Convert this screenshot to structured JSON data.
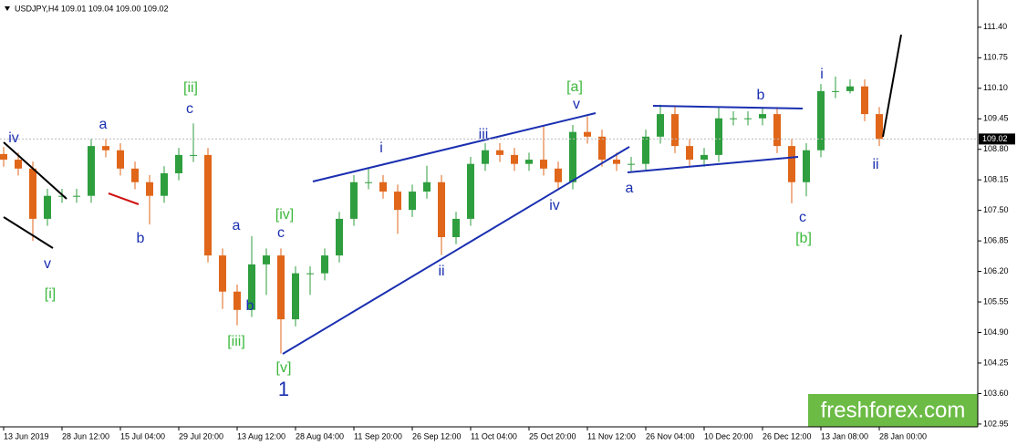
{
  "chart_data": {
    "type": "candlestick",
    "title": "USDJPY,H4  109.01 109.04 109.00 109.02",
    "up_color": "#2e9e3e",
    "down_color": "#e0661a",
    "open": [
      108.7,
      108.58,
      108.39,
      107.32,
      107.81,
      107.81,
      107.81,
      108.87,
      108.78,
      108.39,
      108.1,
      107.81,
      108.29,
      108.68,
      108.68,
      106.54,
      105.77,
      105.38,
      106.35,
      106.54,
      105.18,
      106.16,
      106.16,
      106.54,
      107.32,
      108.1,
      108.1,
      107.9,
      107.51,
      107.9,
      108.1,
      106.93,
      107.32,
      108.49,
      108.78,
      108.68,
      108.49,
      108.58,
      108.39,
      108.1,
      109.17,
      109.07,
      108.58,
      108.49,
      108.49,
      109.07,
      109.55,
      108.87,
      108.58,
      108.68,
      109.46,
      109.46,
      109.46,
      109.55,
      108.87,
      108.1,
      108.78,
      110.04,
      110.04,
      110.14,
      109.55
    ],
    "high": [
      108.85,
      108.73,
      108.54,
      107.96,
      107.96,
      107.96,
      109.02,
      109.02,
      108.93,
      108.54,
      108.25,
      108.44,
      108.83,
      109.35,
      108.83,
      106.69,
      105.92,
      106.95,
      106.69,
      106.69,
      106.31,
      106.31,
      106.69,
      107.47,
      108.25,
      108.4,
      108.25,
      108.05,
      108.05,
      108.45,
      108.25,
      107.47,
      108.64,
      108.93,
      108.93,
      108.83,
      108.73,
      109.3,
      108.54,
      109.32,
      109.5,
      109.22,
      108.73,
      108.64,
      109.22,
      109.75,
      109.7,
      109.02,
      108.83,
      109.7,
      109.61,
      109.61,
      109.7,
      109.7,
      109.02,
      108.93,
      110.19,
      110.35,
      110.29,
      110.29,
      109.7
    ],
    "low": [
      108.43,
      108.24,
      106.85,
      107.17,
      107.66,
      107.66,
      107.66,
      108.63,
      108.24,
      107.95,
      107.2,
      107.66,
      108.14,
      108.53,
      106.39,
      105.4,
      105.05,
      105.23,
      105.7,
      104.45,
      105.03,
      105.7,
      106.01,
      106.39,
      107.17,
      107.95,
      107.75,
      107.0,
      107.36,
      107.75,
      106.55,
      106.78,
      107.17,
      108.34,
      108.53,
      108.34,
      108.34,
      108.24,
      107.95,
      107.95,
      108.92,
      108.43,
      108.34,
      108.34,
      108.34,
      108.92,
      108.72,
      108.43,
      108.43,
      108.53,
      109.31,
      109.31,
      109.31,
      108.72,
      107.65,
      107.8,
      108.63,
      109.89,
      109.99,
      109.4,
      108.87
    ],
    "close": [
      108.58,
      108.39,
      107.32,
      107.81,
      107.81,
      107.81,
      108.87,
      108.78,
      108.39,
      108.1,
      107.81,
      108.29,
      108.68,
      108.68,
      106.54,
      105.77,
      105.38,
      106.35,
      106.54,
      105.18,
      106.16,
      106.16,
      106.54,
      107.32,
      108.1,
      108.1,
      107.9,
      107.51,
      107.9,
      108.1,
      106.93,
      107.32,
      108.49,
      108.78,
      108.68,
      108.49,
      108.58,
      108.39,
      108.1,
      109.17,
      109.07,
      108.58,
      108.49,
      108.49,
      109.07,
      109.55,
      108.87,
      108.58,
      108.68,
      109.46,
      109.46,
      109.46,
      109.55,
      108.87,
      108.1,
      108.78,
      110.04,
      110.04,
      110.14,
      109.55,
      109.02
    ],
    "last_price": 109.02,
    "ylim": [
      102.89,
      111.98
    ],
    "yticks": [
      {
        "value": 111.4,
        "label": "111.40"
      },
      {
        "value": 110.75,
        "label": "110.75"
      },
      {
        "value": 110.1,
        "label": "110.10"
      },
      {
        "value": 109.45,
        "label": "109.45"
      },
      {
        "value": 108.8,
        "label": "108.80"
      },
      {
        "value": 108.15,
        "label": "108.15"
      },
      {
        "value": 107.5,
        "label": "107.50"
      },
      {
        "value": 106.85,
        "label": "106.85"
      },
      {
        "value": 106.2,
        "label": "106.20"
      },
      {
        "value": 105.55,
        "label": "105.55"
      },
      {
        "value": 104.9,
        "label": "104.90"
      },
      {
        "value": 104.25,
        "label": "104.25"
      },
      {
        "value": 103.6,
        "label": "103.60"
      },
      {
        "value": 102.95,
        "label": "102.95"
      }
    ],
    "xlim": [
      -0.25,
      66.75
    ],
    "xticks": [
      {
        "value": 0,
        "label": "13 Jun 2019"
      },
      {
        "value": 4,
        "label": "28 Jun 12:00"
      },
      {
        "value": 8,
        "label": "15 Jul 04:00"
      },
      {
        "value": 12,
        "label": "29 Jul 20:00"
      },
      {
        "value": 16,
        "label": "13 Aug 12:00"
      },
      {
        "value": 20,
        "label": "28 Aug 04:00"
      },
      {
        "value": 24,
        "label": "11 Sep 20:00"
      },
      {
        "value": 28,
        "label": "26 Sep 12:00"
      },
      {
        "value": 32,
        "label": "11 Oct 04:00"
      },
      {
        "value": 36,
        "label": "25 Oct 20:00"
      },
      {
        "value": 40,
        "label": "11 Nov 12:00"
      },
      {
        "value": 44,
        "label": "26 Nov 04:00"
      },
      {
        "value": 48,
        "label": "10 Dec 20:00"
      },
      {
        "value": 52,
        "label": "26 Dec 12:00"
      },
      {
        "value": 56,
        "label": "13 Jan 08:00"
      },
      {
        "value": 60,
        "label": "28 Jan 00:00"
      }
    ],
    "annotations": [
      {
        "text": "iv",
        "color": "#1a2fb0"
      },
      {
        "text": "v",
        "color": "#1a2fb0"
      },
      {
        "text": "[i]",
        "color": "#3cb83c"
      },
      {
        "text": "a",
        "color": "#1a2fb0"
      },
      {
        "text": "b",
        "color": "#1a2fb0"
      },
      {
        "text": "[ii]",
        "color": "#3cb83c"
      },
      {
        "text": "c",
        "color": "#1a2fb0"
      },
      {
        "text": "a",
        "color": "#1a2fb0"
      },
      {
        "text": "b",
        "color": "#1a2fb0"
      },
      {
        "text": "[iii]",
        "color": "#3cb83c"
      },
      {
        "text": "[iv]",
        "color": "#3cb83c"
      },
      {
        "text": "c",
        "color": "#1a2fb0"
      },
      {
        "text": "[v]",
        "color": "#3cb83c"
      },
      {
        "text": "1",
        "color": "#1a2fb0"
      },
      {
        "text": "i",
        "color": "#1a2fb0"
      },
      {
        "text": "iii",
        "color": "#1a2fb0"
      },
      {
        "text": "ii",
        "color": "#1a2fb0"
      },
      {
        "text": "iv",
        "color": "#1a2fb0"
      },
      {
        "text": "v",
        "color": "#1a2fb0"
      },
      {
        "text": "[a]",
        "color": "#3cb83c"
      },
      {
        "text": "a",
        "color": "#1a2fb0"
      },
      {
        "text": "b",
        "color": "#1a2fb0"
      },
      {
        "text": "c",
        "color": "#1a2fb0"
      },
      {
        "text": "[b]",
        "color": "#3cb83c"
      },
      {
        "text": "i",
        "color": "#1a2fb0"
      },
      {
        "text": "ii",
        "color": "#1a2fb0"
      }
    ],
    "watermark": "freshforex.com"
  }
}
